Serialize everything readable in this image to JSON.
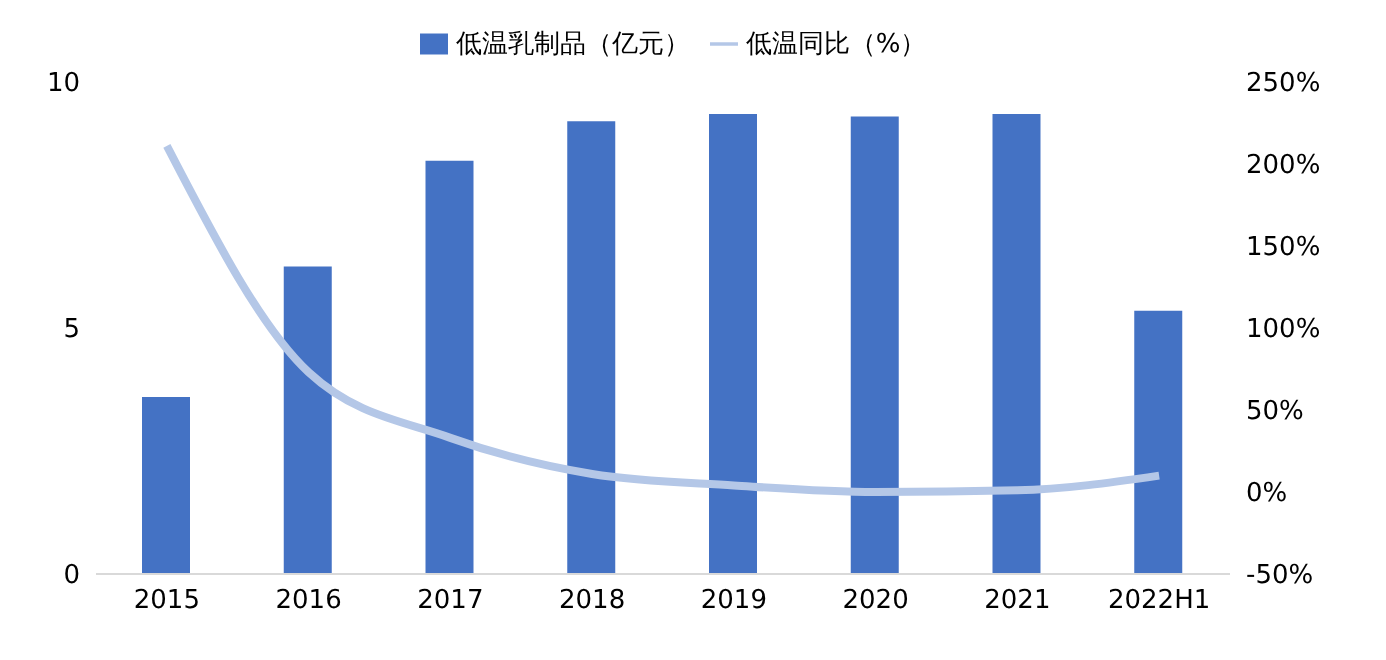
{
  "chart_data": {
    "type": "bar",
    "categories": [
      "2015",
      "2016",
      "2017",
      "2018",
      "2019",
      "2020",
      "2021",
      "2022H1"
    ],
    "series": [
      {
        "name": "低温乳制品（亿元）",
        "color": "#4472c4",
        "values": [
          3.6,
          6.25,
          8.4,
          9.2,
          9.35,
          9.3,
          9.35,
          5.35
        ]
      },
      {
        "name": "低温同比（%）",
        "type": "line",
        "axis": "y2",
        "color": "#b4c7e7",
        "values": [
          211,
          73,
          33,
          11,
          4,
          0,
          1,
          10
        ]
      }
    ],
    "ylim": [
      0,
      10
    ],
    "yticks": [
      0,
      5,
      10
    ],
    "y2lim": [
      -50,
      250
    ],
    "y2ticks": [
      {
        "value": -50,
        "label": "-50%"
      },
      {
        "value": 0,
        "label": "0%"
      },
      {
        "value": 50,
        "label": "50%"
      },
      {
        "value": 100,
        "label": "100%"
      },
      {
        "value": 150,
        "label": "150%"
      },
      {
        "value": 200,
        "label": "200%"
      },
      {
        "value": 250,
        "label": "250%"
      }
    ],
    "legend": "top",
    "grid": false,
    "marker": "none"
  }
}
